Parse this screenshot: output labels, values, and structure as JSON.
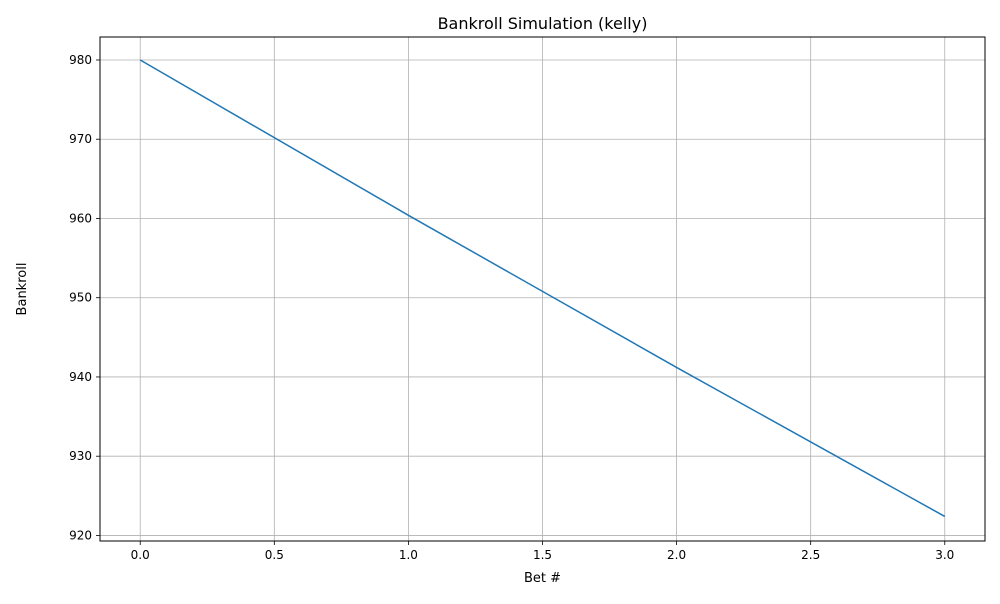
{
  "chart_data": {
    "type": "line",
    "title": "Bankroll Simulation (kelly)",
    "xlabel": "Bet #",
    "ylabel": "Bankroll",
    "xlim": [
      -0.15,
      3.15
    ],
    "ylim": [
      919.3,
      982.9
    ],
    "xticks": [
      0.0,
      0.5,
      1.0,
      1.5,
      2.0,
      2.5,
      3.0
    ],
    "xtick_labels": [
      "0.0",
      "0.5",
      "1.0",
      "1.5",
      "2.0",
      "2.5",
      "3.0"
    ],
    "yticks": [
      920,
      930,
      940,
      950,
      960,
      970,
      980
    ],
    "ytick_labels": [
      "920",
      "930",
      "940",
      "950",
      "960",
      "970",
      "980"
    ],
    "grid": true,
    "series": [
      {
        "color": "#1f77b4",
        "x": [
          0,
          1,
          2,
          3
        ],
        "y": [
          980.0,
          960.4,
          941.2,
          922.4
        ]
      }
    ]
  }
}
